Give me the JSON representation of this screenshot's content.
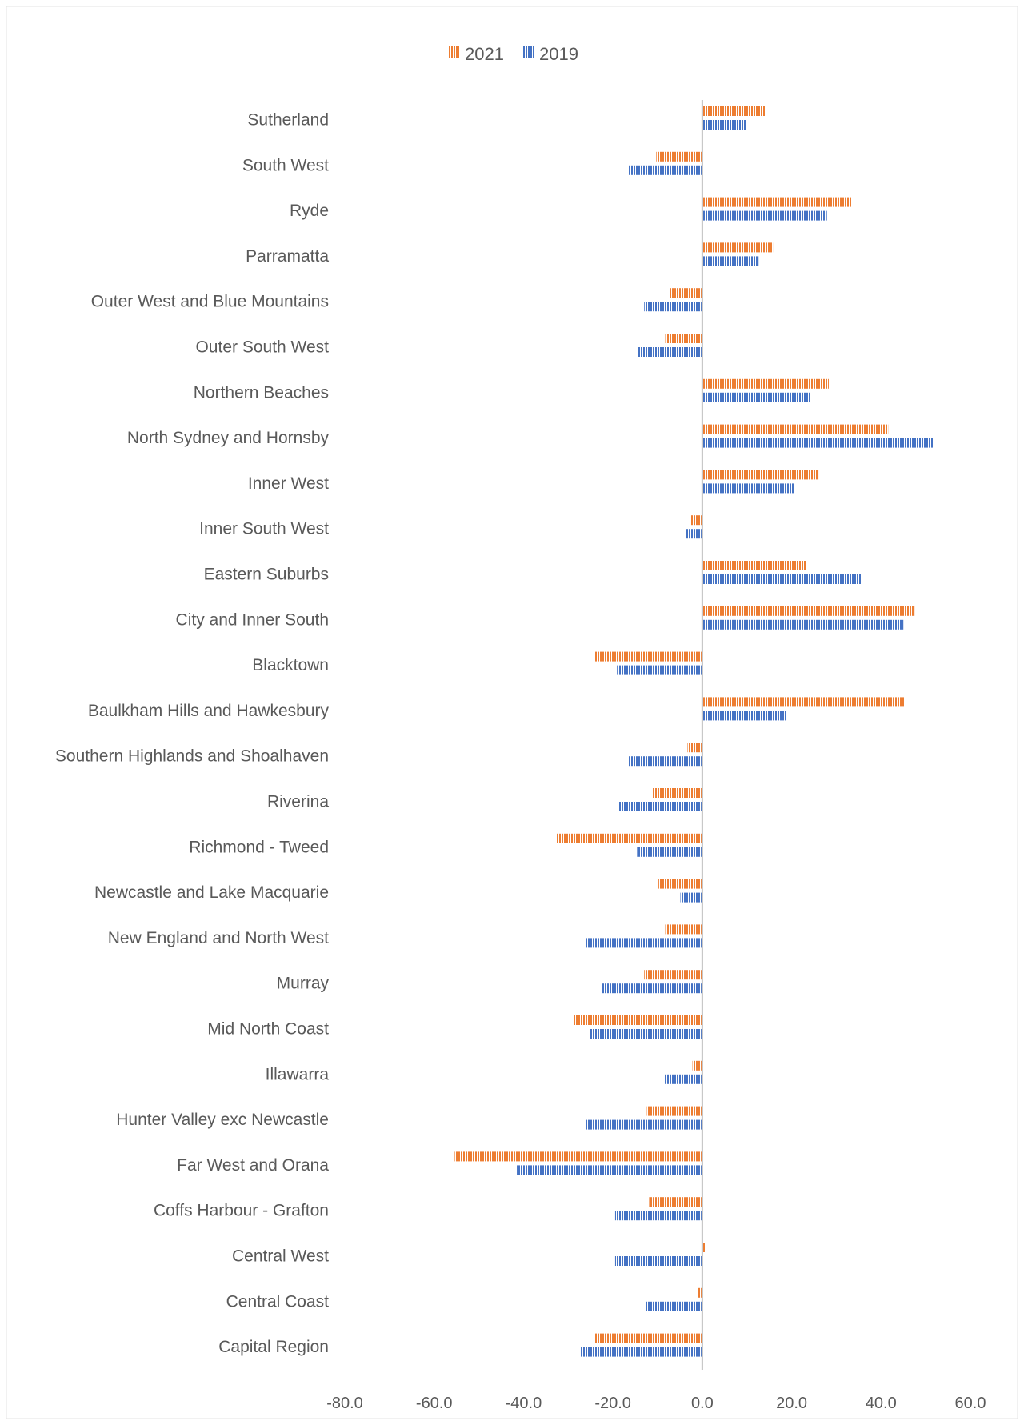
{
  "chart_data": {
    "type": "bar",
    "orientation": "horizontal",
    "title": "",
    "xlabel": "",
    "ylabel": "",
    "xlim": [
      -80,
      60
    ],
    "x_ticks": [
      "-80.0",
      "-60.0",
      "-40.0",
      "-20.0",
      "0.0",
      "20.0",
      "40.0",
      "60.0"
    ],
    "x_tick_values": [
      -80,
      -60,
      -40,
      -20,
      0,
      20,
      40,
      60
    ],
    "grid": false,
    "legend_position": "top",
    "categories": [
      "Sutherland",
      "South West",
      "Ryde",
      "Parramatta",
      "Outer West and Blue Mountains",
      "Outer South West",
      "Northern Beaches",
      "North Sydney and Hornsby",
      "Inner West",
      "Inner South West",
      "Eastern Suburbs",
      "City and Inner South",
      "Blacktown",
      "Baulkham Hills and Hawkesbury",
      "Southern Highlands and Shoalhaven",
      "Riverina",
      "Richmond - Tweed",
      "Newcastle and Lake Macquarie",
      "New England and North West",
      "Murray",
      "Mid North Coast",
      "Illawarra",
      "Hunter Valley exc Newcastle",
      "Far West and Orana",
      "Coffs Harbour - Grafton",
      "Central West",
      "Central Coast",
      "Capital Region"
    ],
    "series": [
      {
        "name": "2021",
        "color": "#ED7D31",
        "values": [
          14.3,
          -10.3,
          33.4,
          15.8,
          -7.4,
          -8.3,
          28.3,
          41.6,
          26.0,
          -2.7,
          23.2,
          47.5,
          -24.0,
          45.3,
          -3.3,
          -11.1,
          -32.7,
          -9.8,
          -8.3,
          -13.0,
          -28.7,
          -2.2,
          -12.4,
          -55.4,
          -11.9,
          0.9,
          -1.0,
          -24.3
        ]
      },
      {
        "name": "2019",
        "color": "#4472C4",
        "values": [
          9.7,
          -16.5,
          27.9,
          12.6,
          -13.0,
          -14.4,
          24.3,
          51.6,
          20.5,
          -3.6,
          35.7,
          45.0,
          -19.1,
          18.8,
          -16.5,
          -18.7,
          -14.6,
          -4.9,
          -26.0,
          -22.5,
          -25.1,
          -8.5,
          -26.0,
          -41.5,
          -19.5,
          -19.5,
          -12.8,
          -27.2
        ]
      }
    ]
  }
}
